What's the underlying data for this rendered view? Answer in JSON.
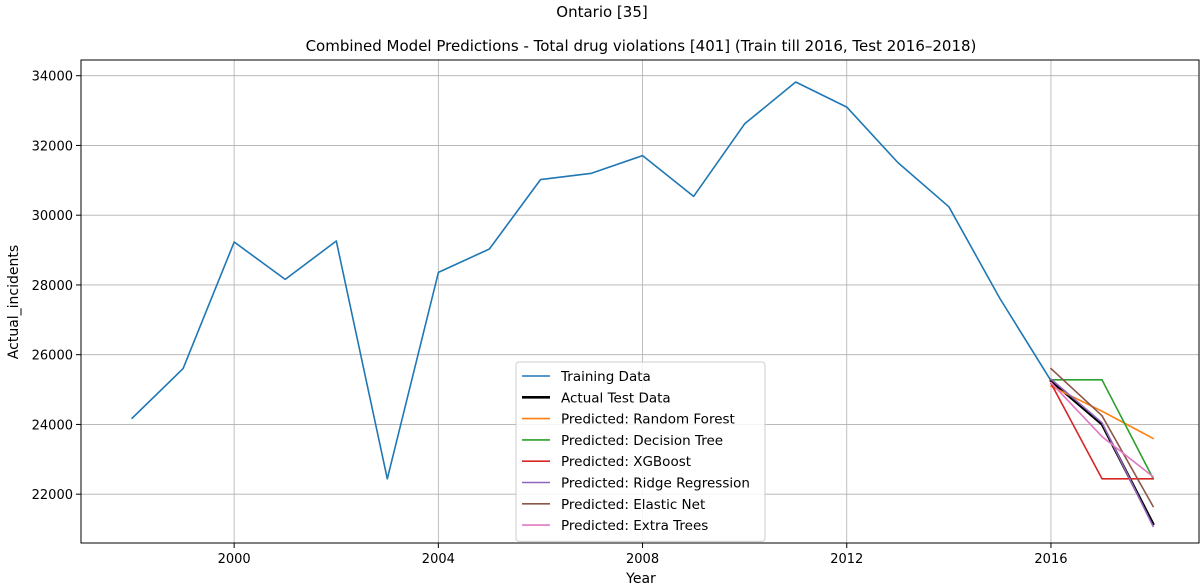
{
  "suptitle": "Ontario [35]",
  "chart_data": {
    "type": "line",
    "title": "Combined Model Predictions - Total drug violations [401] (Train till 2016, Test 2016–2018)",
    "xlabel": "Year",
    "ylabel": "Actual_incidents",
    "xlim": [
      1997.0,
      2018.9
    ],
    "ylim": [
      20600,
      34450
    ],
    "xticks": [
      2000,
      2004,
      2008,
      2012,
      2016
    ],
    "yticks": [
      22000,
      24000,
      26000,
      28000,
      30000,
      32000,
      34000
    ],
    "grid": true,
    "legend_position": "lower center",
    "series": [
      {
        "name": "Training Data",
        "color": "#1f77b4",
        "width": 1.6,
        "x": [
          1998,
          1999,
          2000,
          2001,
          2002,
          2003,
          2004,
          2005,
          2006,
          2007,
          2008,
          2009,
          2010,
          2011,
          2012,
          2013,
          2014,
          2015,
          2016
        ],
        "y": [
          24180,
          25600,
          29230,
          28160,
          29260,
          22440,
          28360,
          29030,
          31020,
          31200,
          31710,
          30540,
          32620,
          33820,
          33100,
          31510,
          30240,
          27610,
          25250
        ]
      },
      {
        "name": "Actual Test Data",
        "color": "#000000",
        "width": 2.6,
        "x": [
          2016,
          2017,
          2018
        ],
        "y": [
          25250,
          24000,
          21150
        ]
      },
      {
        "name": "Predicted: Random Forest",
        "color": "#ff7f0e",
        "width": 1.6,
        "x": [
          2016,
          2017,
          2018
        ],
        "y": [
          25100,
          24380,
          23600
        ]
      },
      {
        "name": "Predicted: Decision Tree",
        "color": "#2ca02c",
        "width": 1.6,
        "x": [
          2016,
          2017,
          2018
        ],
        "y": [
          25280,
          25280,
          22450
        ]
      },
      {
        "name": "Predicted: XGBoost",
        "color": "#d62728",
        "width": 1.6,
        "x": [
          2016,
          2017,
          2018
        ],
        "y": [
          25180,
          22440,
          22440
        ]
      },
      {
        "name": "Predicted: Ridge Regression",
        "color": "#9467bd",
        "width": 1.6,
        "x": [
          2016,
          2017,
          2018
        ],
        "y": [
          25300,
          24050,
          21080
        ]
      },
      {
        "name": "Predicted: Elastic Net",
        "color": "#8c564b",
        "width": 1.6,
        "x": [
          2016,
          2017,
          2018
        ],
        "y": [
          25600,
          24250,
          21650
        ]
      },
      {
        "name": "Predicted: Extra Trees",
        "color": "#e377c2",
        "width": 1.6,
        "x": [
          2016,
          2017,
          2018
        ],
        "y": [
          25200,
          23650,
          22500
        ]
      }
    ]
  }
}
